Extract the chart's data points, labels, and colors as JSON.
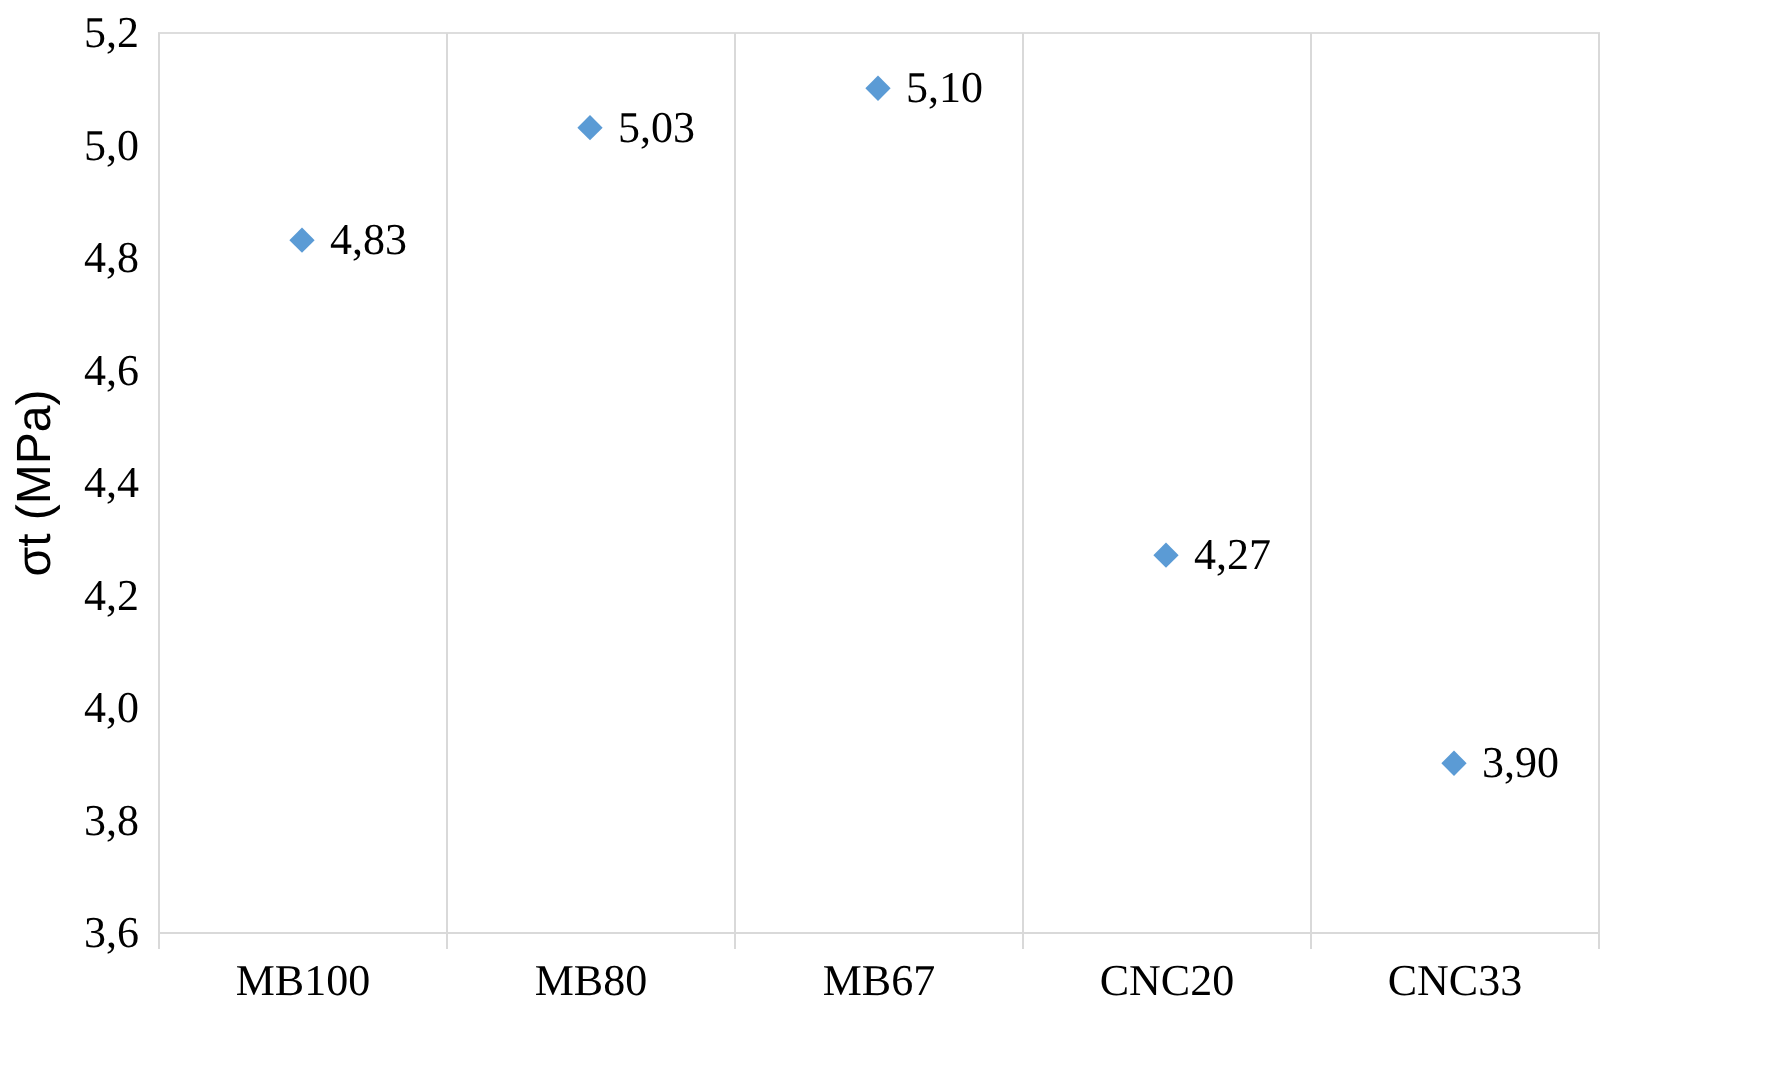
{
  "chart_data": {
    "type": "scatter",
    "ylabel": "σt (MPa)",
    "categories": [
      "MB100",
      "MB80",
      "MB67",
      "CNC20",
      "CNC33"
    ],
    "series": [
      {
        "color": "#5b9bd5",
        "values": [
          4.83,
          5.03,
          5.1,
          4.27,
          3.9
        ],
        "value_labels": [
          "4,83",
          "5,03",
          "5,10",
          "4,27",
          "3,90"
        ]
      }
    ],
    "ylim": [
      3.6,
      5.2
    ],
    "yticks": [
      {
        "value": 3.6,
        "label": "3,6"
      },
      {
        "value": 3.8,
        "label": "3,8"
      },
      {
        "value": 4.0,
        "label": "4,0"
      },
      {
        "value": 4.2,
        "label": "4,2"
      },
      {
        "value": 4.4,
        "label": "4,4"
      },
      {
        "value": 4.6,
        "label": "4,6"
      },
      {
        "value": 4.8,
        "label": "4,8"
      },
      {
        "value": 5.0,
        "label": "5,0"
      },
      {
        "value": 5.2,
        "label": "5,2"
      }
    ],
    "grid": "x",
    "marker": "diamond"
  }
}
